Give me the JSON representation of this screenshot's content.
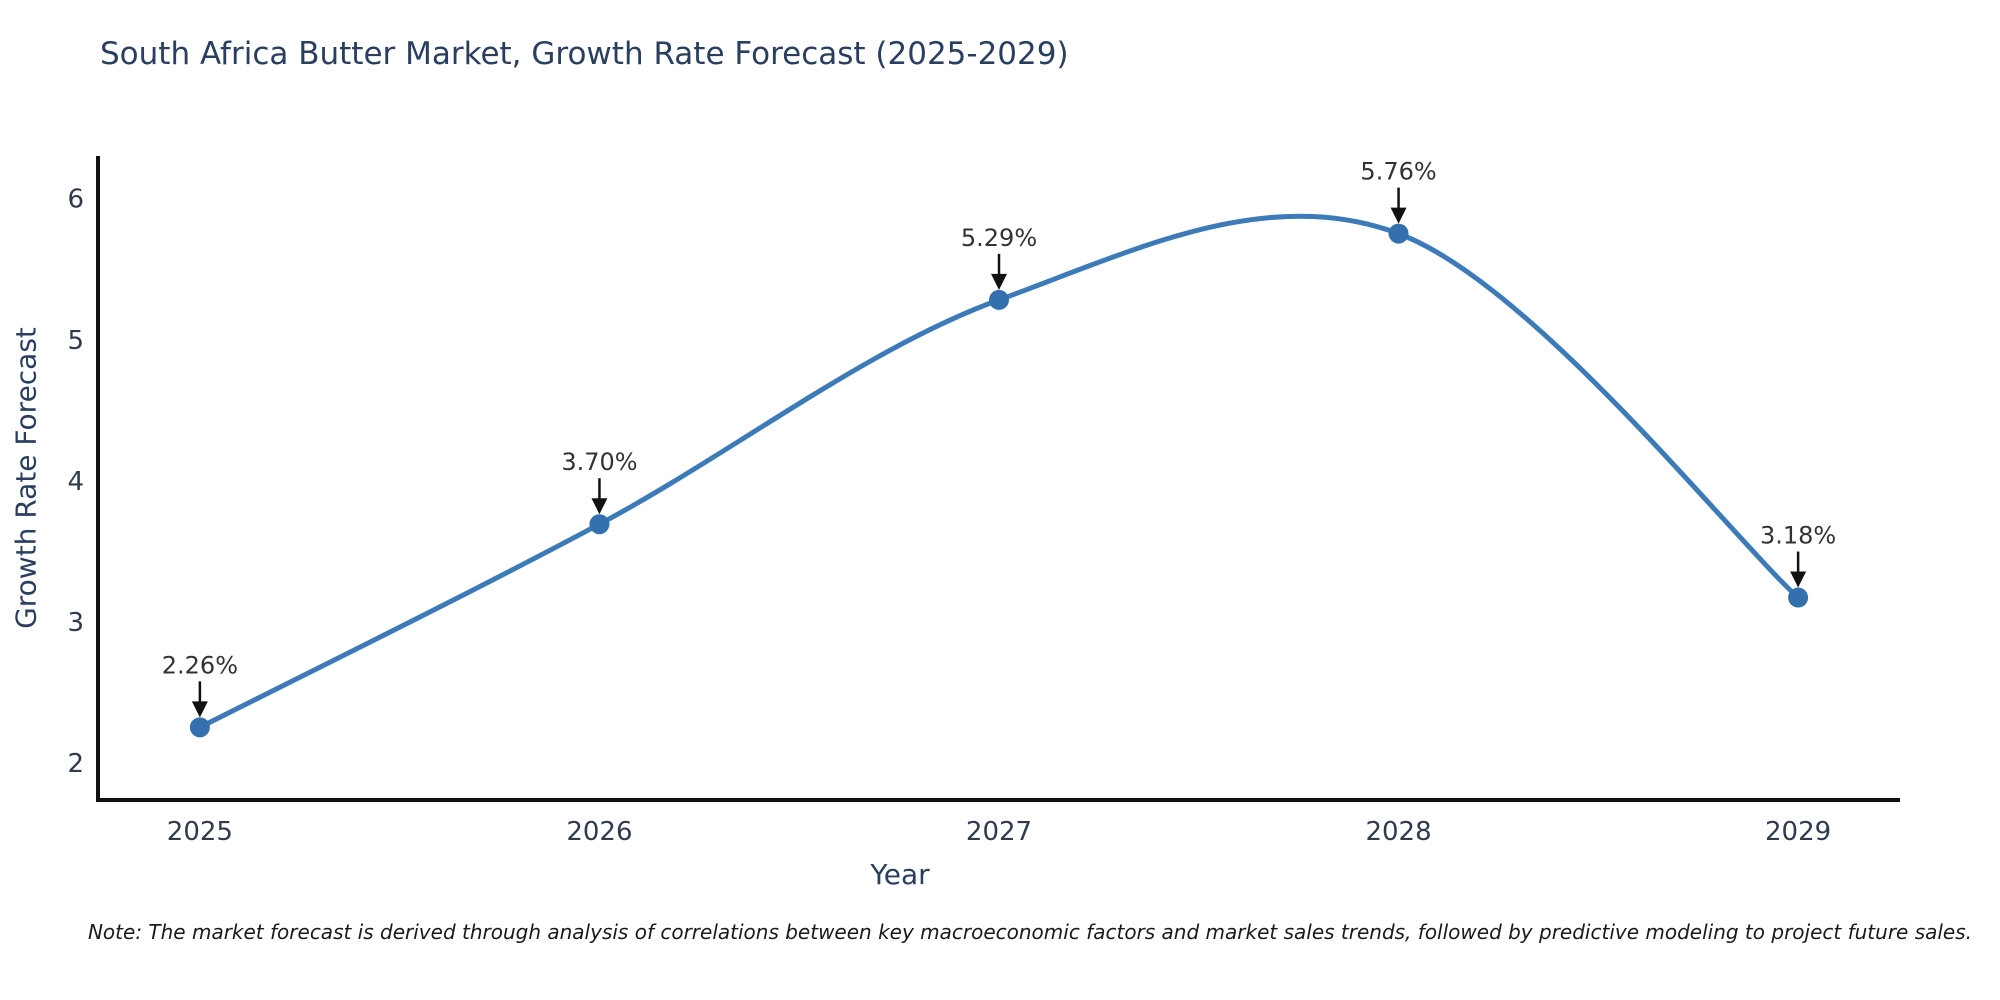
{
  "title": "South Africa Butter Market, Growth Rate Forecast (2025-2029)",
  "note": "Note: The market forecast is derived through analysis of correlations between key macroeconomic factors and market sales trends, followed by predictive modeling to project future sales.",
  "chart_data": {
    "type": "line",
    "title": "South Africa Butter Market, Growth Rate Forecast (2025-2029)",
    "xlabel": "Year",
    "ylabel": "Growth Rate Forecast",
    "x": [
      2025,
      2026,
      2027,
      2028,
      2029
    ],
    "values": [
      2.26,
      3.7,
      5.29,
      5.76,
      3.18
    ],
    "point_labels": [
      "2.26%",
      "3.70%",
      "5.29%",
      "5.76%",
      "3.18%"
    ],
    "x_tick_labels": [
      "2025",
      "2026",
      "2027",
      "2028",
      "2029"
    ],
    "y_ticks": [
      2,
      3,
      4,
      5,
      6
    ],
    "xlim": [
      2024.745,
      2029.255
    ],
    "ylim": [
      1.745,
      6.31
    ],
    "line_shape": "spline",
    "grid": false,
    "legend": "none",
    "annotation_note": "black down-arrows from each percentage label to its marker",
    "colors": {
      "line": "#3d7bb8",
      "marker": "#3470ad",
      "axis_line": "#111111",
      "tick_label": "#2f3b4d",
      "annotation_text": "#333333",
      "arrow": "#111111",
      "title_text": "#2a3f5f",
      "background": "#ffffff"
    }
  }
}
